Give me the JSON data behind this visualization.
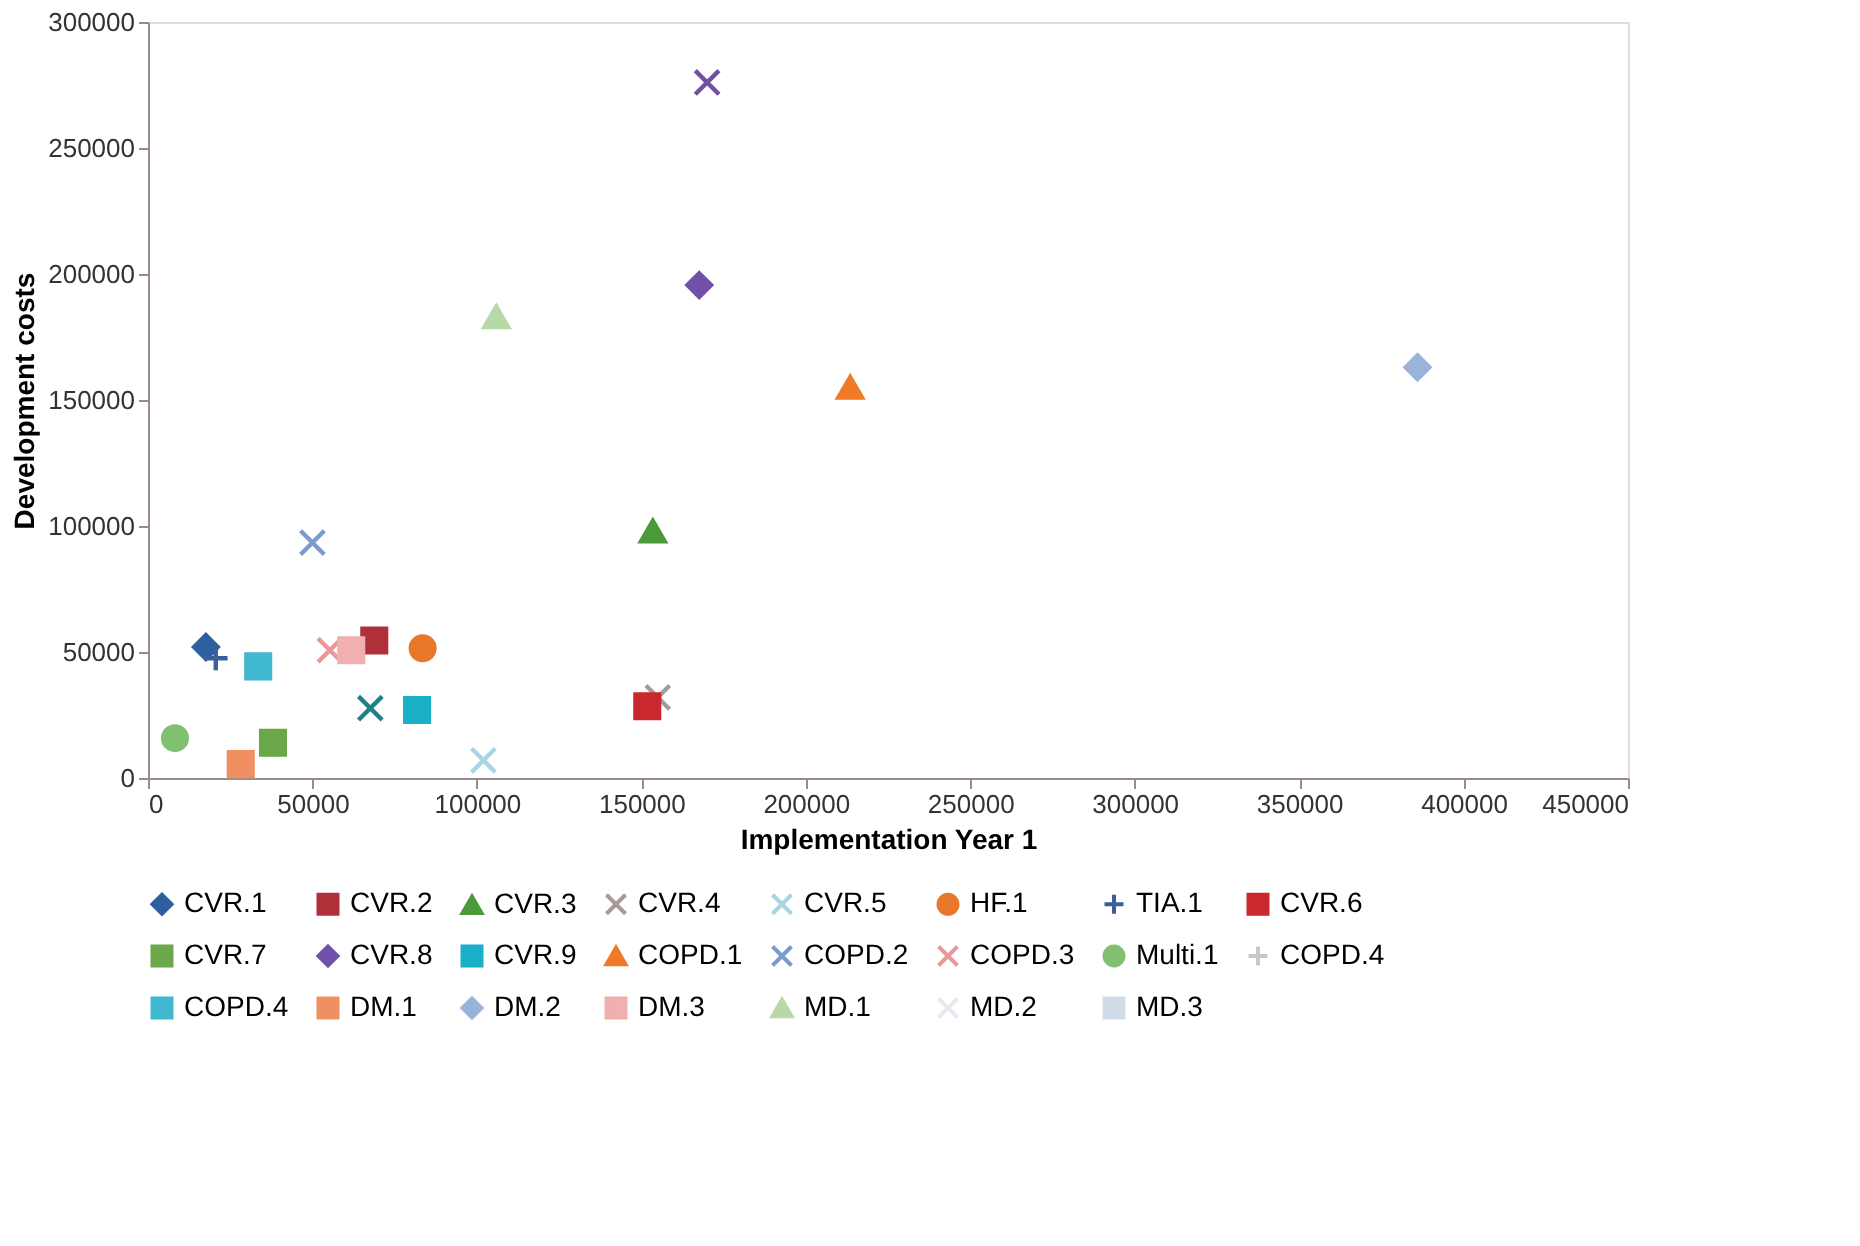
{
  "chart_data": {
    "type": "scatter",
    "xlabel": "Implementation Year 1",
    "ylabel": "Development costs",
    "xlim": [
      0,
      450000
    ],
    "xticks": [
      0,
      50000,
      100000,
      150000,
      200000,
      250000,
      300000,
      350000,
      400000,
      450000
    ],
    "ylim": [
      0,
      300000
    ],
    "yticks": [
      0,
      50000,
      100000,
      150000,
      200000,
      250000,
      300000
    ],
    "grid": false,
    "legend": "bottom",
    "series": [
      {
        "name": "CVR.1",
        "color": "#2e5f9e",
        "marker": "diamond",
        "x": [
          17600
        ],
        "values": [
          52000
        ]
      },
      {
        "name": "CVR.2",
        "color": "#b0303a",
        "marker": "square",
        "x": [
          68800
        ],
        "values": [
          54600
        ]
      },
      {
        "name": "CVR.3",
        "color": "#4a9a3a",
        "marker": "triangle",
        "x": [
          153500
        ],
        "values": [
          98000
        ]
      },
      {
        "name": "CVR.4",
        "color": "#a89a9a",
        "marker": "cross",
        "x": [
          155000
        ],
        "values": [
          32000
        ]
      },
      {
        "name": "CVR.5",
        "color": "#a8d4e4",
        "marker": "cross",
        "x": [
          102000
        ],
        "values": [
          7000
        ]
      },
      {
        "name": "HF.1",
        "color": "#e8782a",
        "marker": "circle",
        "x": [
          83500
        ],
        "values": [
          51500
        ]
      },
      {
        "name": "TIA.1",
        "color": "#3a5f9a",
        "marker": "plus",
        "x": [
          20600
        ],
        "values": [
          47500
        ]
      },
      {
        "name": "CVR.6",
        "color": "#c8282e",
        "marker": "square",
        "x": [
          151800
        ],
        "values": [
          28500
        ]
      },
      {
        "name": "CVR.7",
        "color": "#6aa84a",
        "marker": "square",
        "x": [
          38000
        ],
        "values": [
          14000
        ]
      },
      {
        "name": "CVR.8",
        "color": "#7050a8",
        "marker": "diamond",
        "x": [
          167600
        ],
        "values": [
          195600
        ]
      },
      {
        "name": "CVR.9",
        "color": "#1ab0c8",
        "marker": "square",
        "x": [
          81800
        ],
        "values": [
          27000
        ]
      },
      {
        "name": "COPD.1",
        "color": "#f07a28",
        "marker": "triangle",
        "x": [
          213500
        ],
        "values": [
          155000
        ]
      },
      {
        "name": "COPD.2",
        "color": "#7a9ad0",
        "marker": "cross",
        "x": [
          50000
        ],
        "values": [
          93400
        ]
      },
      {
        "name": "COPD.3",
        "color": "#e89a9a",
        "marker": "cross",
        "x": [
          55300
        ],
        "values": [
          50700
        ]
      },
      {
        "name": "Multi.1",
        "color": "#80c070",
        "marker": "circle",
        "x": [
          8200
        ],
        "values": [
          15800
        ]
      },
      {
        "name": "COPD.4",
        "color": "#c8c8c8",
        "marker": "plus",
        "x": [
          null
        ],
        "values": [
          null
        ]
      },
      {
        "name": "COPD.4",
        "color": "#40b8d0",
        "marker": "square",
        "x": [
          33500
        ],
        "values": [
          44300
        ]
      },
      {
        "name": "DM.1",
        "color": "#f09060",
        "marker": "square",
        "x": [
          28200
        ],
        "values": [
          5500
        ]
      },
      {
        "name": "DM.2",
        "color": "#98b4d8",
        "marker": "diamond",
        "x": [
          386000
        ],
        "values": [
          163000
        ]
      },
      {
        "name": "DM.3",
        "color": "#f0b0b0",
        "marker": "square",
        "x": [
          61800
        ],
        "values": [
          50700
        ]
      },
      {
        "name": "MD.1",
        "color": "#b8d8a8",
        "marker": "triangle",
        "x": [
          105900
        ],
        "values": [
          183000
        ]
      },
      {
        "name": "MD.2",
        "color": "#e8e8f0",
        "marker": "cross",
        "x": [
          null
        ],
        "values": [
          null
        ]
      },
      {
        "name": "MD.3",
        "color": "#d0dce8",
        "marker": "square",
        "x": [
          null
        ],
        "values": [
          null
        ]
      },
      {
        "color": "#7050a0",
        "marker": "cross",
        "x": [
          170000
        ],
        "values": [
          276000
        ]
      },
      {
        "color": "#20808a",
        "marker": "cross",
        "x": [
          67600
        ],
        "values": [
          27700
        ]
      }
    ]
  }
}
